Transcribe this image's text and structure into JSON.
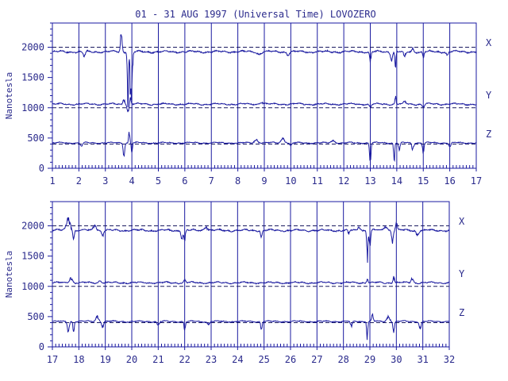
{
  "title": "01 - 31 AUG 1997 (Universal Time) LOVOZERO",
  "colors": {
    "frame": "#1a1aa0",
    "trace": "#1a1aa0",
    "text": "#2a2a8c",
    "baseline": "#1a1a60"
  },
  "chart_data": [
    {
      "type": "line",
      "ylabel": "Nanotesla",
      "ylim": [
        0,
        2400
      ],
      "y_ticks": [
        0,
        500,
        1000,
        1500,
        2000
      ],
      "x_days": [
        1,
        17
      ],
      "x_ticks": [
        "1",
        "2",
        "3",
        "4",
        "5",
        "6",
        "7",
        "8",
        "9",
        "10",
        "11",
        "12",
        "13",
        "14",
        "15",
        "16",
        "17"
      ],
      "baselines": [
        2000,
        1000,
        400
      ],
      "series": [
        {
          "name": "X",
          "base": 1925,
          "quiet_amp": 12,
          "events": [
            {
              "day": 2.2,
              "dev": -70,
              "w": 0.06
            },
            {
              "day": 3.6,
              "dev": 350,
              "w": 0.04
            },
            {
              "day": 3.85,
              "dev": -800,
              "w": 0.03
            },
            {
              "day": 3.95,
              "dev": -700,
              "w": 0.03
            },
            {
              "day": 4.0,
              "dev": -500,
              "w": 0.04
            },
            {
              "day": 8.8,
              "dev": -40,
              "w": 0.1
            },
            {
              "day": 9.9,
              "dev": -60,
              "w": 0.06
            },
            {
              "day": 13.0,
              "dev": -150,
              "w": 0.04
            },
            {
              "day": 13.8,
              "dev": -120,
              "w": 0.05
            },
            {
              "day": 13.95,
              "dev": -220,
              "w": 0.03
            },
            {
              "day": 14.3,
              "dev": -80,
              "w": 0.06
            },
            {
              "day": 14.6,
              "dev": 60,
              "w": 0.05
            },
            {
              "day": 15.0,
              "dev": -80,
              "w": 0.04
            },
            {
              "day": 15.9,
              "dev": -60,
              "w": 0.05
            }
          ]
        },
        {
          "name": "Y",
          "base": 1060,
          "quiet_amp": 10,
          "events": [
            {
              "day": 3.7,
              "dev": 80,
              "w": 0.05
            },
            {
              "day": 3.85,
              "dev": -150,
              "w": 0.04
            },
            {
              "day": 3.95,
              "dev": 100,
              "w": 0.03
            },
            {
              "day": 8.9,
              "dev": 30,
              "w": 0.1
            },
            {
              "day": 13.0,
              "dev": -50,
              "w": 0.05
            },
            {
              "day": 13.95,
              "dev": 120,
              "w": 0.03
            },
            {
              "day": 14.3,
              "dev": 40,
              "w": 0.06
            },
            {
              "day": 15.0,
              "dev": -50,
              "w": 0.05
            }
          ]
        },
        {
          "name": "Z",
          "base": 420,
          "quiet_amp": 8,
          "events": [
            {
              "day": 2.1,
              "dev": -50,
              "w": 0.06
            },
            {
              "day": 3.7,
              "dev": -200,
              "w": 0.04
            },
            {
              "day": 3.9,
              "dev": 200,
              "w": 0.03
            },
            {
              "day": 4.0,
              "dev": -150,
              "w": 0.03
            },
            {
              "day": 8.7,
              "dev": 50,
              "w": 0.1
            },
            {
              "day": 9.7,
              "dev": 70,
              "w": 0.1
            },
            {
              "day": 10.0,
              "dev": -50,
              "w": 0.05
            },
            {
              "day": 11.6,
              "dev": 40,
              "w": 0.1
            },
            {
              "day": 13.0,
              "dev": -260,
              "w": 0.04
            },
            {
              "day": 13.9,
              "dev": -280,
              "w": 0.03
            },
            {
              "day": 14.1,
              "dev": -120,
              "w": 0.04
            },
            {
              "day": 14.6,
              "dev": -100,
              "w": 0.05
            },
            {
              "day": 15.0,
              "dev": -140,
              "w": 0.04
            },
            {
              "day": 16.0,
              "dev": -60,
              "w": 0.06
            }
          ]
        }
      ]
    },
    {
      "type": "line",
      "ylabel": "Nanotesla",
      "ylim": [
        0,
        2400
      ],
      "y_ticks": [
        0,
        500,
        1000,
        1500,
        2000
      ],
      "x_days": [
        17,
        32
      ],
      "x_ticks": [
        "17",
        "18",
        "19",
        "20",
        "21",
        "22",
        "23",
        "24",
        "25",
        "26",
        "27",
        "28",
        "29",
        "30",
        "31",
        "32"
      ],
      "baselines": [
        2000,
        1000,
        400
      ],
      "series": [
        {
          "name": "X",
          "base": 1925,
          "quiet_amp": 12,
          "events": [
            {
              "day": 17.6,
              "dev": 200,
              "w": 0.1
            },
            {
              "day": 17.8,
              "dev": -150,
              "w": 0.04
            },
            {
              "day": 18.6,
              "dev": 100,
              "w": 0.08
            },
            {
              "day": 18.9,
              "dev": -80,
              "w": 0.05
            },
            {
              "day": 21.9,
              "dev": -120,
              "w": 0.05
            },
            {
              "day": 22.0,
              "dev": -150,
              "w": 0.04
            },
            {
              "day": 22.8,
              "dev": 60,
              "w": 0.1
            },
            {
              "day": 24.9,
              "dev": -100,
              "w": 0.04
            },
            {
              "day": 28.2,
              "dev": -60,
              "w": 0.05
            },
            {
              "day": 28.6,
              "dev": 50,
              "w": 0.08
            },
            {
              "day": 28.9,
              "dev": -450,
              "w": 0.03
            },
            {
              "day": 29.0,
              "dev": -250,
              "w": 0.04
            },
            {
              "day": 29.6,
              "dev": 80,
              "w": 0.08
            },
            {
              "day": 29.85,
              "dev": -200,
              "w": 0.04
            },
            {
              "day": 30.0,
              "dev": 120,
              "w": 0.05
            },
            {
              "day": 30.8,
              "dev": -80,
              "w": 0.06
            }
          ]
        },
        {
          "name": "Y",
          "base": 1060,
          "quiet_amp": 10,
          "events": [
            {
              "day": 17.7,
              "dev": 80,
              "w": 0.08
            },
            {
              "day": 18.8,
              "dev": 40,
              "w": 0.08
            },
            {
              "day": 22.0,
              "dev": 40,
              "w": 0.06
            },
            {
              "day": 28.9,
              "dev": 70,
              "w": 0.04
            },
            {
              "day": 29.9,
              "dev": 100,
              "w": 0.04
            },
            {
              "day": 30.6,
              "dev": 70,
              "w": 0.06
            }
          ]
        },
        {
          "name": "Z",
          "base": 420,
          "quiet_amp": 8,
          "events": [
            {
              "day": 17.6,
              "dev": -150,
              "w": 0.05
            },
            {
              "day": 17.8,
              "dev": -200,
              "w": 0.03
            },
            {
              "day": 18.7,
              "dev": 80,
              "w": 0.08
            },
            {
              "day": 18.9,
              "dev": -80,
              "w": 0.05
            },
            {
              "day": 21.0,
              "dev": -60,
              "w": 0.06
            },
            {
              "day": 22.0,
              "dev": -120,
              "w": 0.04
            },
            {
              "day": 22.9,
              "dev": -50,
              "w": 0.06
            },
            {
              "day": 24.9,
              "dev": -120,
              "w": 0.04
            },
            {
              "day": 28.3,
              "dev": -80,
              "w": 0.05
            },
            {
              "day": 28.9,
              "dev": -300,
              "w": 0.03
            },
            {
              "day": 29.1,
              "dev": 120,
              "w": 0.04
            },
            {
              "day": 29.7,
              "dev": 80,
              "w": 0.08
            },
            {
              "day": 29.9,
              "dev": -150,
              "w": 0.04
            },
            {
              "day": 30.9,
              "dev": -120,
              "w": 0.05
            }
          ]
        }
      ]
    }
  ]
}
